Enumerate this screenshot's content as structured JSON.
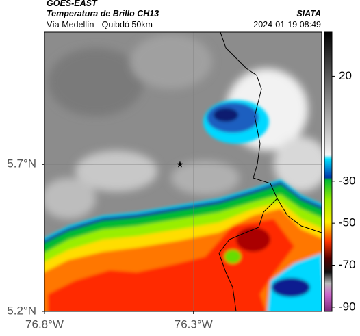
{
  "header": {
    "satellite": "GOES-EAST",
    "product": "Temperatura de Brillo CH13",
    "region": "Vía Medellín - Quibdó 50km",
    "agency": "SIATA",
    "timestamp": "2024-01-19 08:49"
  },
  "map": {
    "xlim": [
      -76.8,
      -75.87
    ],
    "ylim": [
      5.2,
      6.15
    ],
    "xticks": [
      {
        "value": -76.8,
        "label": "76.8°W"
      },
      {
        "value": -76.3,
        "label": "76.3°W"
      }
    ],
    "yticks": [
      {
        "value": 5.7,
        "label": "5.7°N"
      },
      {
        "value": 5.2,
        "label": "5.2°N"
      }
    ]
  },
  "colorbar": {
    "lim": [
      -92,
      41
    ],
    "ticks": [
      20,
      -30,
      -50,
      -70,
      -90
    ]
  }
}
